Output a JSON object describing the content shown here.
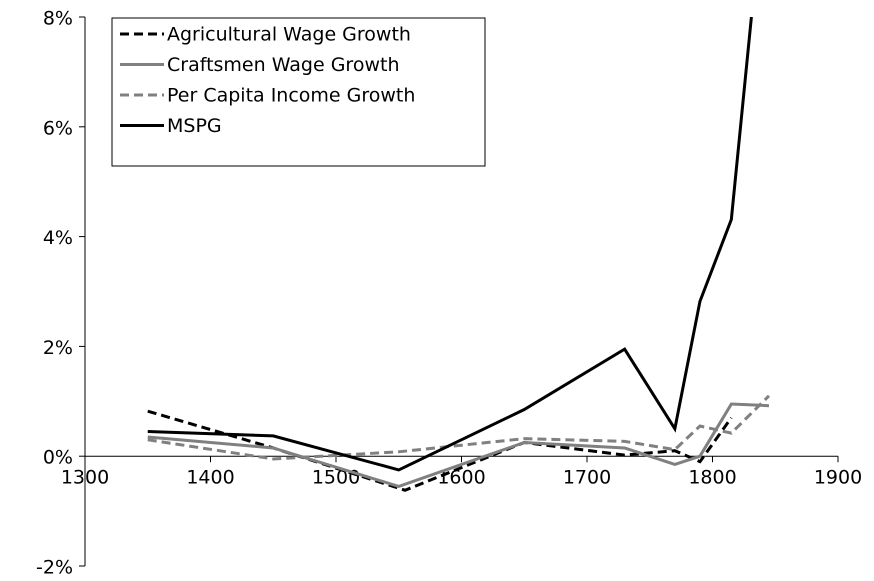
{
  "chart_data": {
    "type": "line",
    "series": [
      {
        "name": "Agricultural Wage Growth",
        "color": "#000000",
        "dash": true,
        "x": [
          1350,
          1450,
          1555,
          1650,
          1730,
          1770,
          1790,
          1815
        ],
        "values": [
          0.82,
          0.15,
          -0.62,
          0.25,
          0.02,
          0.1,
          -0.1,
          0.7
        ]
      },
      {
        "name": "Craftsmen Wage Growth",
        "color": "#808080",
        "dash": false,
        "x": [
          1350,
          1450,
          1550,
          1650,
          1730,
          1770,
          1790,
          1815,
          1845
        ],
        "values": [
          0.35,
          0.15,
          -0.55,
          0.25,
          0.15,
          -0.15,
          0.0,
          0.95,
          0.92
        ]
      },
      {
        "name": "Per Capita Income Growth",
        "color": "#808080",
        "dash": true,
        "x": [
          1350,
          1450,
          1550,
          1650,
          1730,
          1770,
          1790,
          1815,
          1845
        ],
        "values": [
          0.3,
          -0.05,
          0.08,
          0.32,
          0.27,
          0.12,
          0.55,
          0.42,
          1.1
        ]
      },
      {
        "name": "MSPG",
        "color": "#000000",
        "dash": false,
        "x": [
          1350,
          1450,
          1550,
          1650,
          1730,
          1770,
          1790,
          1815,
          1831
        ],
        "values": [
          0.45,
          0.37,
          -0.25,
          0.85,
          1.95,
          0.5,
          2.82,
          4.31,
          8.0
        ]
      }
    ],
    "xlim": [
      1300,
      1900
    ],
    "xticks": [
      1300,
      1400,
      1500,
      1600,
      1700,
      1800,
      1900
    ],
    "ylim": [
      -2,
      8
    ],
    "yticks": [
      {
        "value": -2,
        "label": "-2%"
      },
      {
        "value": 0,
        "label": "0%"
      },
      {
        "value": 2,
        "label": "2%"
      },
      {
        "value": 4,
        "label": "4%"
      },
      {
        "value": 6,
        "label": "6%"
      },
      {
        "value": 8,
        "label": "8%"
      }
    ],
    "legend": "top-left"
  }
}
